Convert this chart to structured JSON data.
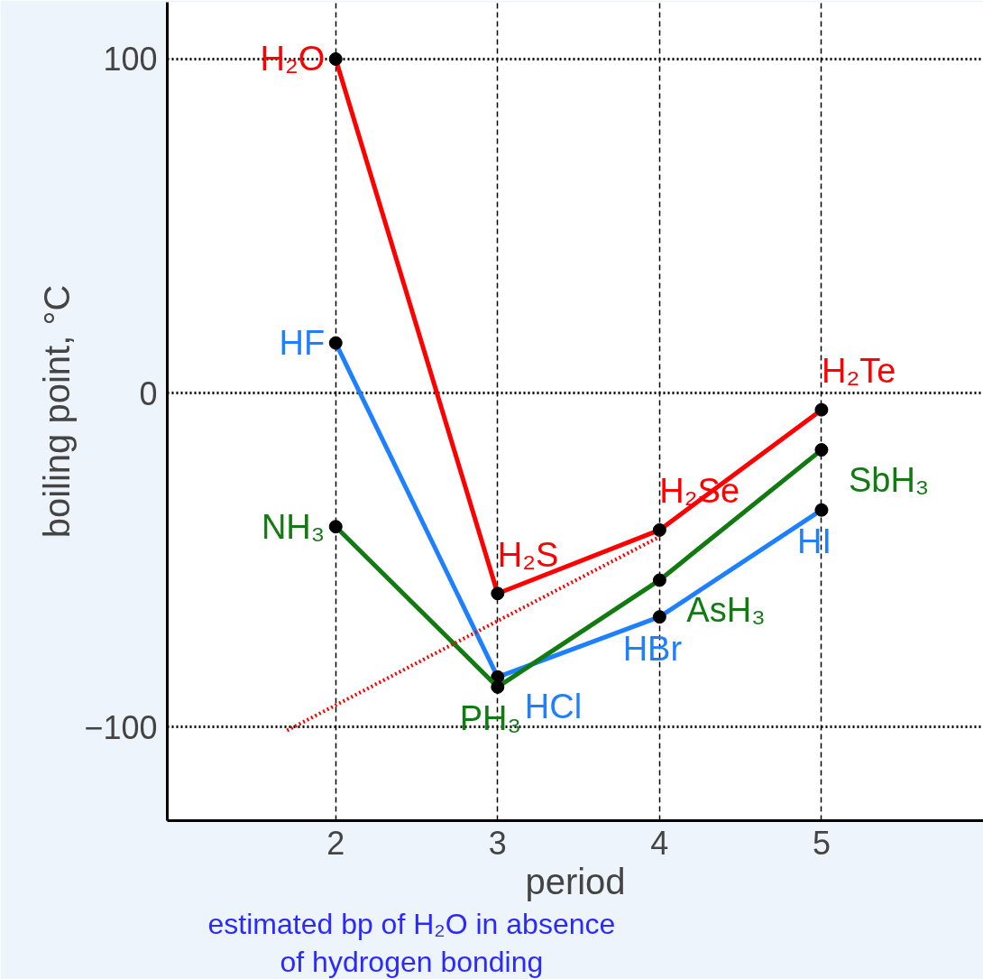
{
  "chart_data": {
    "type": "line",
    "xlabel": "period",
    "ylabel": "boiling point, °C",
    "x": [
      2,
      3,
      4,
      5
    ],
    "series": [
      {
        "color": "#ff0000",
        "values": [
          100,
          -60,
          -41,
          -5
        ]
      },
      {
        "color": "#1e80ff",
        "values": [
          15,
          -85,
          -67,
          -35
        ]
      },
      {
        "color": "#117a11",
        "values": [
          -40,
          -88,
          -56,
          -17
        ]
      },
      {
        "color": "#ff0000",
        "x": [
          1.7,
          4
        ],
        "values": [
          -101,
          -43
        ],
        "line_style": "dotted",
        "marker": "none"
      }
    ],
    "xlim": [
      0.96,
      6
    ],
    "ylim": [
      -128,
      117
    ],
    "xticks": [
      2,
      3,
      4,
      5
    ],
    "yticks": [
      -100,
      0,
      100
    ],
    "grid": true,
    "marker": "circle",
    "line_style": "solid",
    "annotations": [
      {
        "text": "H₂O",
        "x": 2,
        "y": 100
      },
      {
        "text": "HF",
        "x": 2,
        "y": 15
      },
      {
        "text": "NH₃",
        "x": 2,
        "y": -40
      },
      {
        "text": "H₂S",
        "x": 3,
        "y": -60
      },
      {
        "text": "HCl",
        "x": 3,
        "y": -85
      },
      {
        "text": "PH₃",
        "x": 3,
        "y": -88
      },
      {
        "text": "H₂Se",
        "x": 4,
        "y": -41
      },
      {
        "text": "AsH₃",
        "x": 4,
        "y": -56
      },
      {
        "text": "HBr",
        "x": 4,
        "y": -67
      },
      {
        "text": "H₂Te",
        "x": 5,
        "y": -5
      },
      {
        "text": "SbH₃",
        "x": 5,
        "y": -17
      },
      {
        "text": "HI",
        "x": 5,
        "y": -35
      },
      "estimated bp of H₂O in absence of hydrogen bonding"
    ]
  }
}
